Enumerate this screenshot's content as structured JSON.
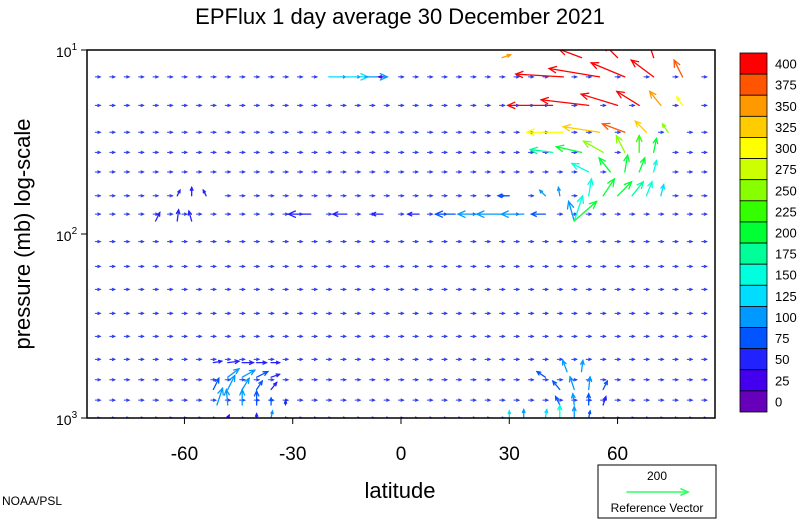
{
  "chart_data": {
    "type": "vector_field",
    "title": "EPFlux  1 day average  30 December  2021",
    "xlabel": "latitude",
    "ylabel": "pressure (mb)  log-scale",
    "x_ticks": [
      -60,
      -30,
      0,
      30,
      60
    ],
    "x_tick_labels": [
      "-60",
      "-30",
      "0",
      "30",
      "60"
    ],
    "xlim": [
      -87,
      87
    ],
    "y_scale": "log",
    "ylim": [
      1000,
      10
    ],
    "y_ticks": [
      {
        "base": "10",
        "exp": "1",
        "value": 10
      },
      {
        "base": "10",
        "exp": "2",
        "value": 100
      },
      {
        "base": "10",
        "exp": "3",
        "value": 1000
      }
    ],
    "grid": false,
    "colorbar": {
      "levels": [
        "400",
        "375",
        "350",
        "325",
        "300",
        "275",
        "250",
        "225",
        "200",
        "175",
        "150",
        "125",
        "100",
        "75",
        "50",
        "25",
        "0"
      ],
      "colors": [
        "#ff0000",
        "#ff5500",
        "#ff9900",
        "#ffcc00",
        "#ffff00",
        "#ccff00",
        "#88ff00",
        "#33ff00",
        "#00ff33",
        "#00ff99",
        "#00ffdd",
        "#00ddff",
        "#0099ff",
        "#0055ff",
        "#2222ff",
        "#4400ee",
        "#6600bb"
      ]
    },
    "reference_vector": {
      "value": "200",
      "label": "Reference Vector"
    },
    "vectors": [
      {
        "lat": -48,
        "p": 1000,
        "u": 0.1,
        "v": 0.2,
        "mag": 40
      },
      {
        "lat": -40,
        "p": 1000,
        "u": 0.0,
        "v": 0.3,
        "mag": 60
      },
      {
        "lat": -36,
        "p": 1000,
        "u": 0.1,
        "v": 0.5,
        "mag": 120
      },
      {
        "lat": -51,
        "p": 850,
        "u": 0.4,
        "v": 1.2,
        "mag": 100
      },
      {
        "lat": -48,
        "p": 850,
        "u": -0.1,
        "v": 1.1,
        "mag": 100
      },
      {
        "lat": -44,
        "p": 850,
        "u": 0.0,
        "v": 1.1,
        "mag": 110
      },
      {
        "lat": -40,
        "p": 850,
        "u": 0.0,
        "v": 1.0,
        "mag": 90
      },
      {
        "lat": -36,
        "p": 850,
        "u": 0.0,
        "v": 0.5,
        "mag": 80
      },
      {
        "lat": -32,
        "p": 850,
        "u": 0.0,
        "v": 0.3,
        "mag": 60
      },
      {
        "lat": -52,
        "p": 700,
        "u": 0.4,
        "v": 0.8,
        "mag": 90
      },
      {
        "lat": -48,
        "p": 700,
        "u": 0.5,
        "v": 1.0,
        "mag": 100
      },
      {
        "lat": -44,
        "p": 700,
        "u": 0.5,
        "v": 0.8,
        "mag": 110
      },
      {
        "lat": -40,
        "p": 700,
        "u": 0.4,
        "v": 0.6,
        "mag": 90
      },
      {
        "lat": -36,
        "p": 700,
        "u": 0.4,
        "v": 0.5,
        "mag": 70
      },
      {
        "lat": -48,
        "p": 600,
        "u": 0.8,
        "v": 0.6,
        "mag": 100
      },
      {
        "lat": -44,
        "p": 600,
        "u": 0.9,
        "v": 0.5,
        "mag": 110
      },
      {
        "lat": -40,
        "p": 600,
        "u": 0.8,
        "v": 0.4,
        "mag": 90
      },
      {
        "lat": -36,
        "p": 600,
        "u": 0.6,
        "v": 0.2,
        "mag": 70
      },
      {
        "lat": -52,
        "p": 500,
        "u": 0.6,
        "v": 0.1,
        "mag": 60
      },
      {
        "lat": -48,
        "p": 500,
        "u": 0.8,
        "v": 0.1,
        "mag": 70
      },
      {
        "lat": -44,
        "p": 500,
        "u": 0.8,
        "v": 0.0,
        "mag": 70
      },
      {
        "lat": -40,
        "p": 500,
        "u": 0.7,
        "v": 0.0,
        "mag": 60
      },
      {
        "lat": -36,
        "p": 500,
        "u": 0.6,
        "v": 0.0,
        "mag": 50
      },
      {
        "lat": -68,
        "p": 85,
        "u": 0.3,
        "v": 0.6,
        "mag": 60
      },
      {
        "lat": -62,
        "p": 85,
        "u": 0.1,
        "v": 0.8,
        "mag": 70
      },
      {
        "lat": -58,
        "p": 85,
        "u": -0.2,
        "v": 0.7,
        "mag": 70
      },
      {
        "lat": -62,
        "p": 62,
        "u": 0.2,
        "v": 0.4,
        "mag": 50
      },
      {
        "lat": -58,
        "p": 62,
        "u": 0.0,
        "v": 0.6,
        "mag": 60
      },
      {
        "lat": -54,
        "p": 62,
        "u": -0.2,
        "v": 0.4,
        "mag": 50
      },
      {
        "lat": -20,
        "p": 14,
        "u": 2.8,
        "v": 0.0,
        "mag": 140
      },
      {
        "lat": -10,
        "p": 14,
        "u": 1.6,
        "v": 0.0,
        "mag": 110
      },
      {
        "lat": -5,
        "p": 14,
        "u": -0.3,
        "v": 0.0,
        "mag": 40
      },
      {
        "lat": -25,
        "p": 78,
        "u": -1.6,
        "v": 0.0,
        "mag": 60
      },
      {
        "lat": -15,
        "p": 78,
        "u": -1.0,
        "v": 0.0,
        "mag": 60
      },
      {
        "lat": -5,
        "p": 78,
        "u": -0.8,
        "v": 0.0,
        "mag": 60
      },
      {
        "lat": 5,
        "p": 78,
        "u": -0.8,
        "v": 0.0,
        "mag": 70
      },
      {
        "lat": 15,
        "p": 78,
        "u": -1.4,
        "v": 0.0,
        "mag": 90
      },
      {
        "lat": 22,
        "p": 78,
        "u": -1.6,
        "v": 0.0,
        "mag": 110
      },
      {
        "lat": 28,
        "p": 78,
        "u": -1.8,
        "v": 0.0,
        "mag": 120
      },
      {
        "lat": 34,
        "p": 78,
        "u": -1.6,
        "v": 0.0,
        "mag": 110
      },
      {
        "lat": 40,
        "p": 78,
        "u": -1.0,
        "v": 0.0,
        "mag": 90
      },
      {
        "lat": 30,
        "p": 62,
        "u": -0.8,
        "v": 0.0,
        "mag": 90
      },
      {
        "lat": 40,
        "p": 62,
        "u": -0.4,
        "v": 0.4,
        "mag": 100
      },
      {
        "lat": 44,
        "p": 62,
        "u": -0.1,
        "v": 0.6,
        "mag": 110
      },
      {
        "lat": 48,
        "p": 85,
        "u": -0.4,
        "v": 1.4,
        "mag": 120
      },
      {
        "lat": 48,
        "p": 85,
        "u": 0.6,
        "v": 1.8,
        "mag": 170
      },
      {
        "lat": 48,
        "p": 85,
        "u": 1.6,
        "v": 1.4,
        "mag": 200
      },
      {
        "lat": 52,
        "p": 62,
        "u": 0.2,
        "v": 1.2,
        "mag": 170
      },
      {
        "lat": 56,
        "p": 62,
        "u": 0.8,
        "v": 1.2,
        "mag": 210
      },
      {
        "lat": 60,
        "p": 62,
        "u": 1.0,
        "v": 1.0,
        "mag": 200
      },
      {
        "lat": 64,
        "p": 62,
        "u": 0.8,
        "v": 1.0,
        "mag": 190
      },
      {
        "lat": 68,
        "p": 62,
        "u": 0.4,
        "v": 1.0,
        "mag": 160
      },
      {
        "lat": 72,
        "p": 62,
        "u": 0.2,
        "v": 0.8,
        "mag": 130
      },
      {
        "lat": 52,
        "p": 46,
        "u": -1.2,
        "v": 0.6,
        "mag": 150
      },
      {
        "lat": 58,
        "p": 46,
        "u": -0.8,
        "v": 1.0,
        "mag": 200
      },
      {
        "lat": 62,
        "p": 46,
        "u": 0.2,
        "v": 1.2,
        "mag": 220
      },
      {
        "lat": 66,
        "p": 46,
        "u": 0.4,
        "v": 1.0,
        "mag": 200
      },
      {
        "lat": 70,
        "p": 46,
        "u": 0.2,
        "v": 0.8,
        "mag": 150
      },
      {
        "lat": 42,
        "p": 36,
        "u": -1.6,
        "v": 0.2,
        "mag": 180
      },
      {
        "lat": 50,
        "p": 36,
        "u": -1.8,
        "v": 0.4,
        "mag": 220
      },
      {
        "lat": 56,
        "p": 36,
        "u": -1.4,
        "v": 0.8,
        "mag": 250
      },
      {
        "lat": 62,
        "p": 36,
        "u": -0.6,
        "v": 1.2,
        "mag": 260
      },
      {
        "lat": 66,
        "p": 36,
        "u": 0.0,
        "v": 1.2,
        "mag": 230
      },
      {
        "lat": 70,
        "p": 36,
        "u": 0.2,
        "v": 1.0,
        "mag": 200
      },
      {
        "lat": 45,
        "p": 28,
        "u": -2.6,
        "v": 0.0,
        "mag": 310
      },
      {
        "lat": 55,
        "p": 28,
        "u": -2.6,
        "v": 0.4,
        "mag": 340
      },
      {
        "lat": 62,
        "p": 28,
        "u": -1.6,
        "v": 0.6,
        "mag": 380
      },
      {
        "lat": 68,
        "p": 28,
        "u": -0.8,
        "v": 0.8,
        "mag": 330
      },
      {
        "lat": 74,
        "p": 28,
        "u": -0.4,
        "v": 0.6,
        "mag": 270
      },
      {
        "lat": 42,
        "p": 20,
        "u": -3.2,
        "v": 0.0,
        "mag": 400
      },
      {
        "lat": 52,
        "p": 20,
        "u": -3.4,
        "v": 0.4,
        "mag": 420
      },
      {
        "lat": 60,
        "p": 20,
        "u": -2.6,
        "v": 0.8,
        "mag": 420
      },
      {
        "lat": 66,
        "p": 20,
        "u": -1.6,
        "v": 1.0,
        "mag": 400
      },
      {
        "lat": 72,
        "p": 20,
        "u": -0.8,
        "v": 1.0,
        "mag": 350
      },
      {
        "lat": 78,
        "p": 20,
        "u": -0.4,
        "v": 0.6,
        "mag": 300
      },
      {
        "lat": 45,
        "p": 14,
        "u": -3.4,
        "v": 0.2,
        "mag": 420
      },
      {
        "lat": 55,
        "p": 14,
        "u": -3.6,
        "v": 0.6,
        "mag": 420
      },
      {
        "lat": 62,
        "p": 14,
        "u": -2.4,
        "v": 1.0,
        "mag": 420
      },
      {
        "lat": 70,
        "p": 14,
        "u": -1.6,
        "v": 1.2,
        "mag": 410
      },
      {
        "lat": 78,
        "p": 14,
        "u": -0.6,
        "v": 1.2,
        "mag": 380
      },
      {
        "lat": 50,
        "p": 11,
        "u": -1.6,
        "v": 0.6,
        "mag": 410
      },
      {
        "lat": 60,
        "p": 11,
        "u": -1.0,
        "v": 1.0,
        "mag": 420
      },
      {
        "lat": 70,
        "p": 11,
        "u": -0.4,
        "v": 1.2,
        "mag": 400
      },
      {
        "lat": 28,
        "p": 11,
        "u": 0.6,
        "v": 0.2,
        "mag": 360
      },
      {
        "lat": 46,
        "p": 560,
        "u": -0.3,
        "v": 0.8,
        "mag": 110
      },
      {
        "lat": 50,
        "p": 560,
        "u": 0.1,
        "v": 0.8,
        "mag": 110
      },
      {
        "lat": 40,
        "p": 600,
        "u": -0.6,
        "v": 0.4,
        "mag": 90
      },
      {
        "lat": 44,
        "p": 700,
        "u": -0.5,
        "v": 0.6,
        "mag": 90
      },
      {
        "lat": 48,
        "p": 700,
        "u": -0.3,
        "v": 0.9,
        "mag": 100
      },
      {
        "lat": 52,
        "p": 700,
        "u": 0.1,
        "v": 0.9,
        "mag": 100
      },
      {
        "lat": 56,
        "p": 700,
        "u": 0.3,
        "v": 0.6,
        "mag": 80
      },
      {
        "lat": 44,
        "p": 850,
        "u": -0.3,
        "v": 0.6,
        "mag": 90
      },
      {
        "lat": 48,
        "p": 850,
        "u": -0.1,
        "v": 0.8,
        "mag": 100
      },
      {
        "lat": 52,
        "p": 850,
        "u": 0.0,
        "v": 0.8,
        "mag": 90
      },
      {
        "lat": 56,
        "p": 850,
        "u": 0.2,
        "v": 0.6,
        "mag": 70
      },
      {
        "lat": 30,
        "p": 1000,
        "u": 0.0,
        "v": 0.5,
        "mag": 140
      },
      {
        "lat": 34,
        "p": 1000,
        "u": 0.0,
        "v": 0.6,
        "mag": 120
      },
      {
        "lat": 40,
        "p": 1000,
        "u": 0.1,
        "v": 0.6,
        "mag": 130
      },
      {
        "lat": 44,
        "p": 1000,
        "u": 0.0,
        "v": 0.9,
        "mag": 150
      },
      {
        "lat": 48,
        "p": 1000,
        "u": 0.0,
        "v": 0.8,
        "mag": 110
      },
      {
        "lat": 52,
        "p": 1000,
        "u": 0.1,
        "v": 0.5,
        "mag": 90
      }
    ]
  },
  "footer": {
    "credit": "NOAA/PSL"
  }
}
